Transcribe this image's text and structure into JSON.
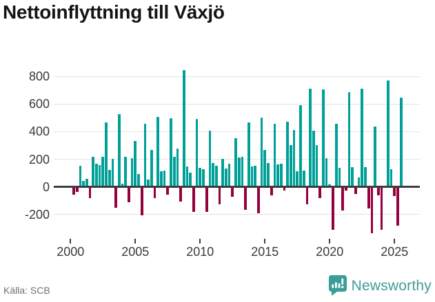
{
  "title": "Nettoinflyttning till Växjö",
  "footer": {
    "source": "Källa: SCB",
    "brand": "Newsworthy"
  },
  "colors": {
    "positive_bar": "#00a099",
    "negative_bar": "#95003f",
    "gridline": "#e3e3e3",
    "axis_line": "#3d3d3d",
    "axis_text": "#3a3a3a",
    "title_text": "#141414",
    "source_text": "#707070",
    "brand_teal": "#3e9d99"
  },
  "chart_data": {
    "type": "bar",
    "title": "Nettoinflyttning till Växjö",
    "frequency": "quarterly",
    "start": {
      "year": 2000,
      "quarter": 1
    },
    "end": {
      "year": 2025,
      "quarter": 3
    },
    "values": [
      2,
      -58,
      -36,
      154,
      41,
      56,
      -79,
      218,
      170,
      160,
      220,
      465,
      124,
      205,
      -149,
      526,
      21,
      218,
      -112,
      210,
      331,
      91,
      -207,
      455,
      53,
      268,
      -83,
      504,
      111,
      119,
      -58,
      499,
      218,
      275,
      -104,
      846,
      149,
      102,
      -179,
      493,
      136,
      127,
      -182,
      405,
      174,
      154,
      -124,
      202,
      132,
      169,
      -69,
      350,
      212,
      220,
      -165,
      468,
      150,
      154,
      -190,
      501,
      268,
      174,
      -61,
      458,
      162,
      169,
      -25,
      474,
      302,
      413,
      111,
      592,
      120,
      -127,
      710,
      408,
      301,
      -79,
      705,
      210,
      20,
      -311,
      458,
      140,
      -169,
      -25,
      687,
      144,
      -50,
      66,
      710,
      144,
      -157,
      -337,
      437,
      -60,
      -310,
      6,
      770,
      128,
      -65,
      -282,
      648
    ],
    "yticks": [
      -200,
      0,
      200,
      400,
      600,
      800
    ],
    "ytick_labels": [
      "-200",
      "0",
      "200",
      "400",
      "600",
      "800"
    ],
    "xticks": [
      2000,
      2005,
      2010,
      2015,
      2020,
      2025
    ],
    "xtick_labels": [
      "2000",
      "2005",
      "2010",
      "2015",
      "2020",
      "2025"
    ],
    "ylim": [
      -360,
      870
    ],
    "grid": true,
    "legend": "none",
    "xlabel": "",
    "ylabel": ""
  }
}
